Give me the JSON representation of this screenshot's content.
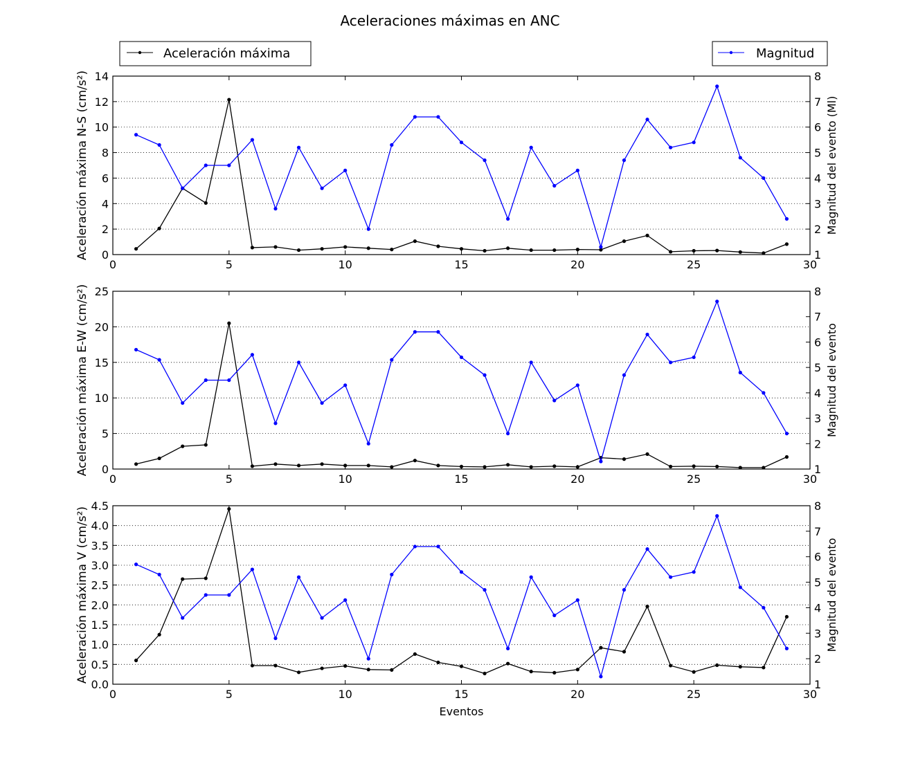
{
  "figure": {
    "title": "Aceleraciones máximas en ANC",
    "legend_left": {
      "label": "Aceleración máxima",
      "color": "#000000"
    },
    "legend_right": {
      "label": "Magnitud",
      "color": "#0000ff"
    }
  },
  "chart_data": [
    {
      "type": "line",
      "title": "",
      "xlabel": "",
      "ylabel": "Aceleración máxima N-S (cm/s²)",
      "ylabel_right": "Magnitud del evento (Ml)",
      "xlim": [
        0,
        30
      ],
      "ylim": [
        0,
        14
      ],
      "ylim_right": [
        1,
        8
      ],
      "x_ticks": [
        0,
        5,
        10,
        15,
        20,
        25,
        30
      ],
      "y_ticks": [
        0,
        2,
        4,
        6,
        8,
        10,
        12,
        14
      ],
      "y_ticks_right": [
        1,
        2,
        3,
        4,
        5,
        6,
        7,
        8
      ],
      "grid": "horizontal dotted",
      "legend": "top-left and top-right, above plots",
      "x": [
        1,
        2,
        3,
        4,
        5,
        6,
        7,
        8,
        9,
        10,
        11,
        12,
        13,
        14,
        15,
        16,
        17,
        18,
        19,
        20,
        21,
        22,
        23,
        24,
        25,
        26,
        27,
        28,
        29
      ],
      "series": [
        {
          "name": "Aceleración máxima",
          "axis": "left",
          "color": "#000000",
          "values": [
            0.45,
            2.05,
            5.2,
            4.05,
            12.15,
            0.55,
            0.6,
            0.35,
            0.45,
            0.6,
            0.5,
            0.4,
            1.05,
            0.65,
            0.45,
            0.3,
            0.5,
            0.35,
            0.35,
            0.4,
            0.38,
            1.05,
            1.5,
            0.22,
            0.3,
            0.32,
            0.2,
            0.12,
            0.82
          ]
        },
        {
          "name": "Magnitud",
          "axis": "right",
          "color": "#0000ff",
          "values": [
            5.7,
            5.3,
            3.6,
            4.5,
            4.5,
            5.5,
            2.8,
            5.2,
            3.6,
            4.3,
            2.0,
            5.3,
            6.4,
            6.4,
            5.4,
            4.7,
            2.4,
            5.2,
            3.7,
            4.3,
            1.3,
            4.7,
            6.3,
            5.2,
            5.4,
            7.6,
            4.8,
            4.0,
            2.4
          ]
        }
      ]
    },
    {
      "type": "line",
      "title": "",
      "xlabel": "",
      "ylabel": "Aceleración máxima E-W (cm/s²)",
      "ylabel_right": "Magnitud del evento",
      "xlim": [
        0,
        30
      ],
      "ylim": [
        0,
        25
      ],
      "ylim_right": [
        1,
        8
      ],
      "x_ticks": [
        0,
        5,
        10,
        15,
        20,
        25,
        30
      ],
      "y_ticks": [
        0,
        5,
        10,
        15,
        20,
        25
      ],
      "y_ticks_right": [
        1,
        2,
        3,
        4,
        5,
        6,
        7,
        8
      ],
      "grid": "horizontal dotted",
      "x": [
        1,
        2,
        3,
        4,
        5,
        6,
        7,
        8,
        9,
        10,
        11,
        12,
        13,
        14,
        15,
        16,
        17,
        18,
        19,
        20,
        21,
        22,
        23,
        24,
        25,
        26,
        27,
        28,
        29
      ],
      "series": [
        {
          "name": "Aceleración máxima",
          "axis": "left",
          "color": "#000000",
          "values": [
            0.7,
            1.5,
            3.2,
            3.4,
            20.5,
            0.4,
            0.7,
            0.5,
            0.7,
            0.5,
            0.5,
            0.3,
            1.2,
            0.5,
            0.35,
            0.3,
            0.6,
            0.3,
            0.4,
            0.3,
            1.6,
            1.4,
            2.1,
            0.35,
            0.4,
            0.35,
            0.2,
            0.2,
            1.7
          ]
        },
        {
          "name": "Magnitud",
          "axis": "right",
          "color": "#0000ff",
          "values": [
            5.7,
            5.3,
            3.6,
            4.5,
            4.5,
            5.5,
            2.8,
            5.2,
            3.6,
            4.3,
            2.0,
            5.3,
            6.4,
            6.4,
            5.4,
            4.7,
            2.4,
            5.2,
            3.7,
            4.3,
            1.3,
            4.7,
            6.3,
            5.2,
            5.4,
            7.6,
            4.8,
            4.0,
            2.4
          ]
        }
      ]
    },
    {
      "type": "line",
      "title": "",
      "xlabel": "Eventos",
      "ylabel": "Aceleración máxima V (cm/s²)",
      "ylabel_right": "Magnitud del evento",
      "xlim": [
        0,
        30
      ],
      "ylim": [
        0,
        4.5
      ],
      "ylim_right": [
        1,
        8
      ],
      "x_ticks": [
        0,
        5,
        10,
        15,
        20,
        25,
        30
      ],
      "y_ticks": [
        0.0,
        0.5,
        1.0,
        1.5,
        2.0,
        2.5,
        3.0,
        3.5,
        4.0,
        4.5
      ],
      "y_ticks_right": [
        1,
        2,
        3,
        4,
        5,
        6,
        7,
        8
      ],
      "grid": "horizontal dotted",
      "x": [
        1,
        2,
        3,
        4,
        5,
        6,
        7,
        8,
        9,
        10,
        11,
        12,
        13,
        14,
        15,
        16,
        17,
        18,
        19,
        20,
        21,
        22,
        23,
        24,
        25,
        26,
        27,
        28,
        29
      ],
      "series": [
        {
          "name": "Aceleración máxima",
          "axis": "left",
          "color": "#000000",
          "values": [
            0.6,
            1.25,
            2.65,
            2.67,
            4.42,
            0.47,
            0.47,
            0.3,
            0.4,
            0.46,
            0.37,
            0.36,
            0.76,
            0.55,
            0.45,
            0.27,
            0.52,
            0.32,
            0.29,
            0.37,
            0.92,
            0.82,
            1.96,
            0.47,
            0.31,
            0.48,
            0.44,
            0.42,
            1.7
          ]
        },
        {
          "name": "Magnitud",
          "axis": "right",
          "color": "#0000ff",
          "values": [
            5.7,
            5.3,
            3.6,
            4.5,
            4.5,
            5.5,
            2.8,
            5.2,
            3.6,
            4.3,
            2.0,
            5.3,
            6.4,
            6.4,
            5.4,
            4.7,
            2.4,
            5.2,
            3.7,
            4.3,
            1.3,
            4.7,
            6.3,
            5.2,
            5.4,
            7.6,
            4.8,
            4.0,
            2.4
          ]
        }
      ]
    }
  ]
}
